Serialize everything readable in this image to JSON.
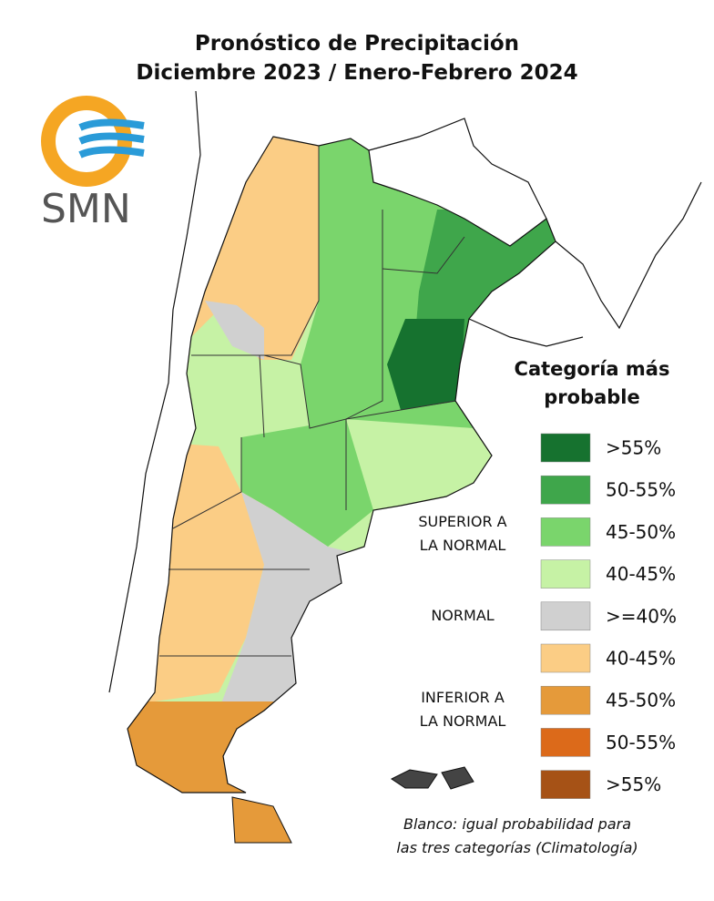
{
  "title": [
    "Pronóstico de Precipitación",
    "Diciembre 2023 / Enero-Febrero 2024"
  ],
  "logo": "SMN",
  "legend": {
    "title": [
      "Categoría más",
      "probable"
    ],
    "items": [
      {
        "label": ">55%",
        "color": "#16722f"
      },
      {
        "label": "50-55%",
        "color": "#3fa64b"
      },
      {
        "label": "45-50%",
        "color": "#7ad56c"
      },
      {
        "label": "40-45%",
        "color": "#c6f2a5"
      },
      {
        "label": ">=40%",
        "color": "#d0d0d0"
      },
      {
        "label": "40-45%",
        "color": "#fbcd85"
      },
      {
        "label": "45-50%",
        "color": "#e59a3a"
      },
      {
        "label": "50-55%",
        "color": "#dc6a1a"
      },
      {
        "label": ">55%",
        "color": "#a65216"
      }
    ],
    "groups": [
      [
        "SUPERIOR A",
        "LA NORMAL"
      ],
      [
        "NORMAL"
      ],
      [
        "INFERIOR A",
        "LA NORMAL"
      ]
    ]
  },
  "note": [
    "Blanco: igual probabilidad para",
    "las tres categorías (Climatología)"
  ]
}
